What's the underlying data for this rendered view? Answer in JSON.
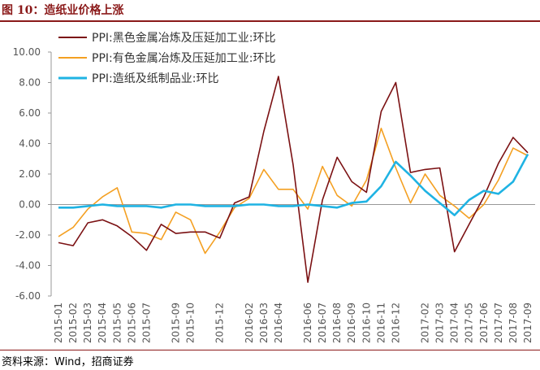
{
  "title": "图 10：造纸业价格上涨",
  "source": "资料来源：Wind，招商证券",
  "chart_data": {
    "type": "line",
    "x": [
      "2015-01",
      "2015-02",
      "2015-03",
      "2015-04",
      "2015-05",
      "2015-06",
      "2015-07",
      "2015-08",
      "2015-09",
      "2015-10",
      "2015-11",
      "2015-12",
      "2016-01",
      "2016-02",
      "2016-03",
      "2016-04",
      "2016-05",
      "2016-06",
      "2016-07",
      "2016-08",
      "2016-09",
      "2016-10",
      "2016-11",
      "2016-12",
      "2017-01",
      "2017-02",
      "2017-03",
      "2017-04",
      "2017-05",
      "2017-06",
      "2017-07",
      "2017-08",
      "2017-09"
    ],
    "x_tick_labels": [
      "2015-01",
      "2015-02",
      "2015-03",
      "2015-04",
      "2015-05",
      "2015-06",
      "2015-07",
      "2015-09",
      "2015-10",
      "2015-12",
      "2016-02",
      "2016-03",
      "2016-04",
      "2016-06",
      "2016-07",
      "2016-08",
      "2016-09",
      "2016-10",
      "2016-11",
      "2016-12",
      "2017-02",
      "2017-03",
      "2017-04",
      "2017-05",
      "2017-06",
      "2017-07",
      "2017-08",
      "2017-09"
    ],
    "ylim": [
      -6,
      10
    ],
    "yticks": [
      "10.00",
      "8.00",
      "6.00",
      "4.00",
      "2.00",
      "0.00",
      "-2.00",
      "-4.00",
      "-6.00"
    ],
    "grid": false,
    "legend_position": "top-left",
    "series": [
      {
        "name": "PPI:黑色金属冶炼及压延加工业:环比",
        "color": "#7b1113",
        "width": 1.6,
        "values": [
          -2.5,
          -2.7,
          -1.2,
          -1.0,
          -1.4,
          -2.1,
          -3.0,
          -1.3,
          -1.9,
          -1.8,
          -1.8,
          -2.2,
          0.1,
          0.5,
          4.8,
          8.4,
          2.6,
          -5.1,
          0.3,
          3.1,
          1.5,
          0.8,
          6.1,
          8.0,
          2.1,
          2.3,
          2.4,
          -3.1,
          -1.3,
          0.5,
          2.7,
          4.4,
          3.4
        ]
      },
      {
        "name": "PPI:有色金属冶炼及压延加工业:环比",
        "color": "#f4a022",
        "width": 1.6,
        "values": [
          -2.1,
          -1.5,
          -0.3,
          0.5,
          1.1,
          -1.8,
          -1.9,
          -2.3,
          -0.5,
          -1.0,
          -3.2,
          -1.8,
          -0.2,
          0.4,
          2.3,
          1.0,
          1.0,
          -0.3,
          2.5,
          0.6,
          -0.1,
          1.6,
          5.0,
          2.4,
          0.1,
          2.0,
          0.6,
          -0.1,
          -0.9,
          0.0,
          1.6,
          3.7,
          3.2
        ]
      },
      {
        "name": "PPI:造纸及纸制品业:环比",
        "color": "#1fb3e3",
        "width": 2.6,
        "values": [
          -0.2,
          -0.2,
          -0.1,
          0.0,
          -0.1,
          -0.1,
          -0.1,
          -0.2,
          0.0,
          0.0,
          -0.1,
          -0.1,
          -0.1,
          0.0,
          0.0,
          -0.1,
          -0.1,
          0.0,
          -0.1,
          -0.2,
          0.1,
          0.2,
          1.2,
          2.8,
          1.9,
          0.9,
          0.1,
          -0.7,
          0.3,
          0.9,
          0.7,
          1.5,
          3.3
        ]
      }
    ]
  }
}
